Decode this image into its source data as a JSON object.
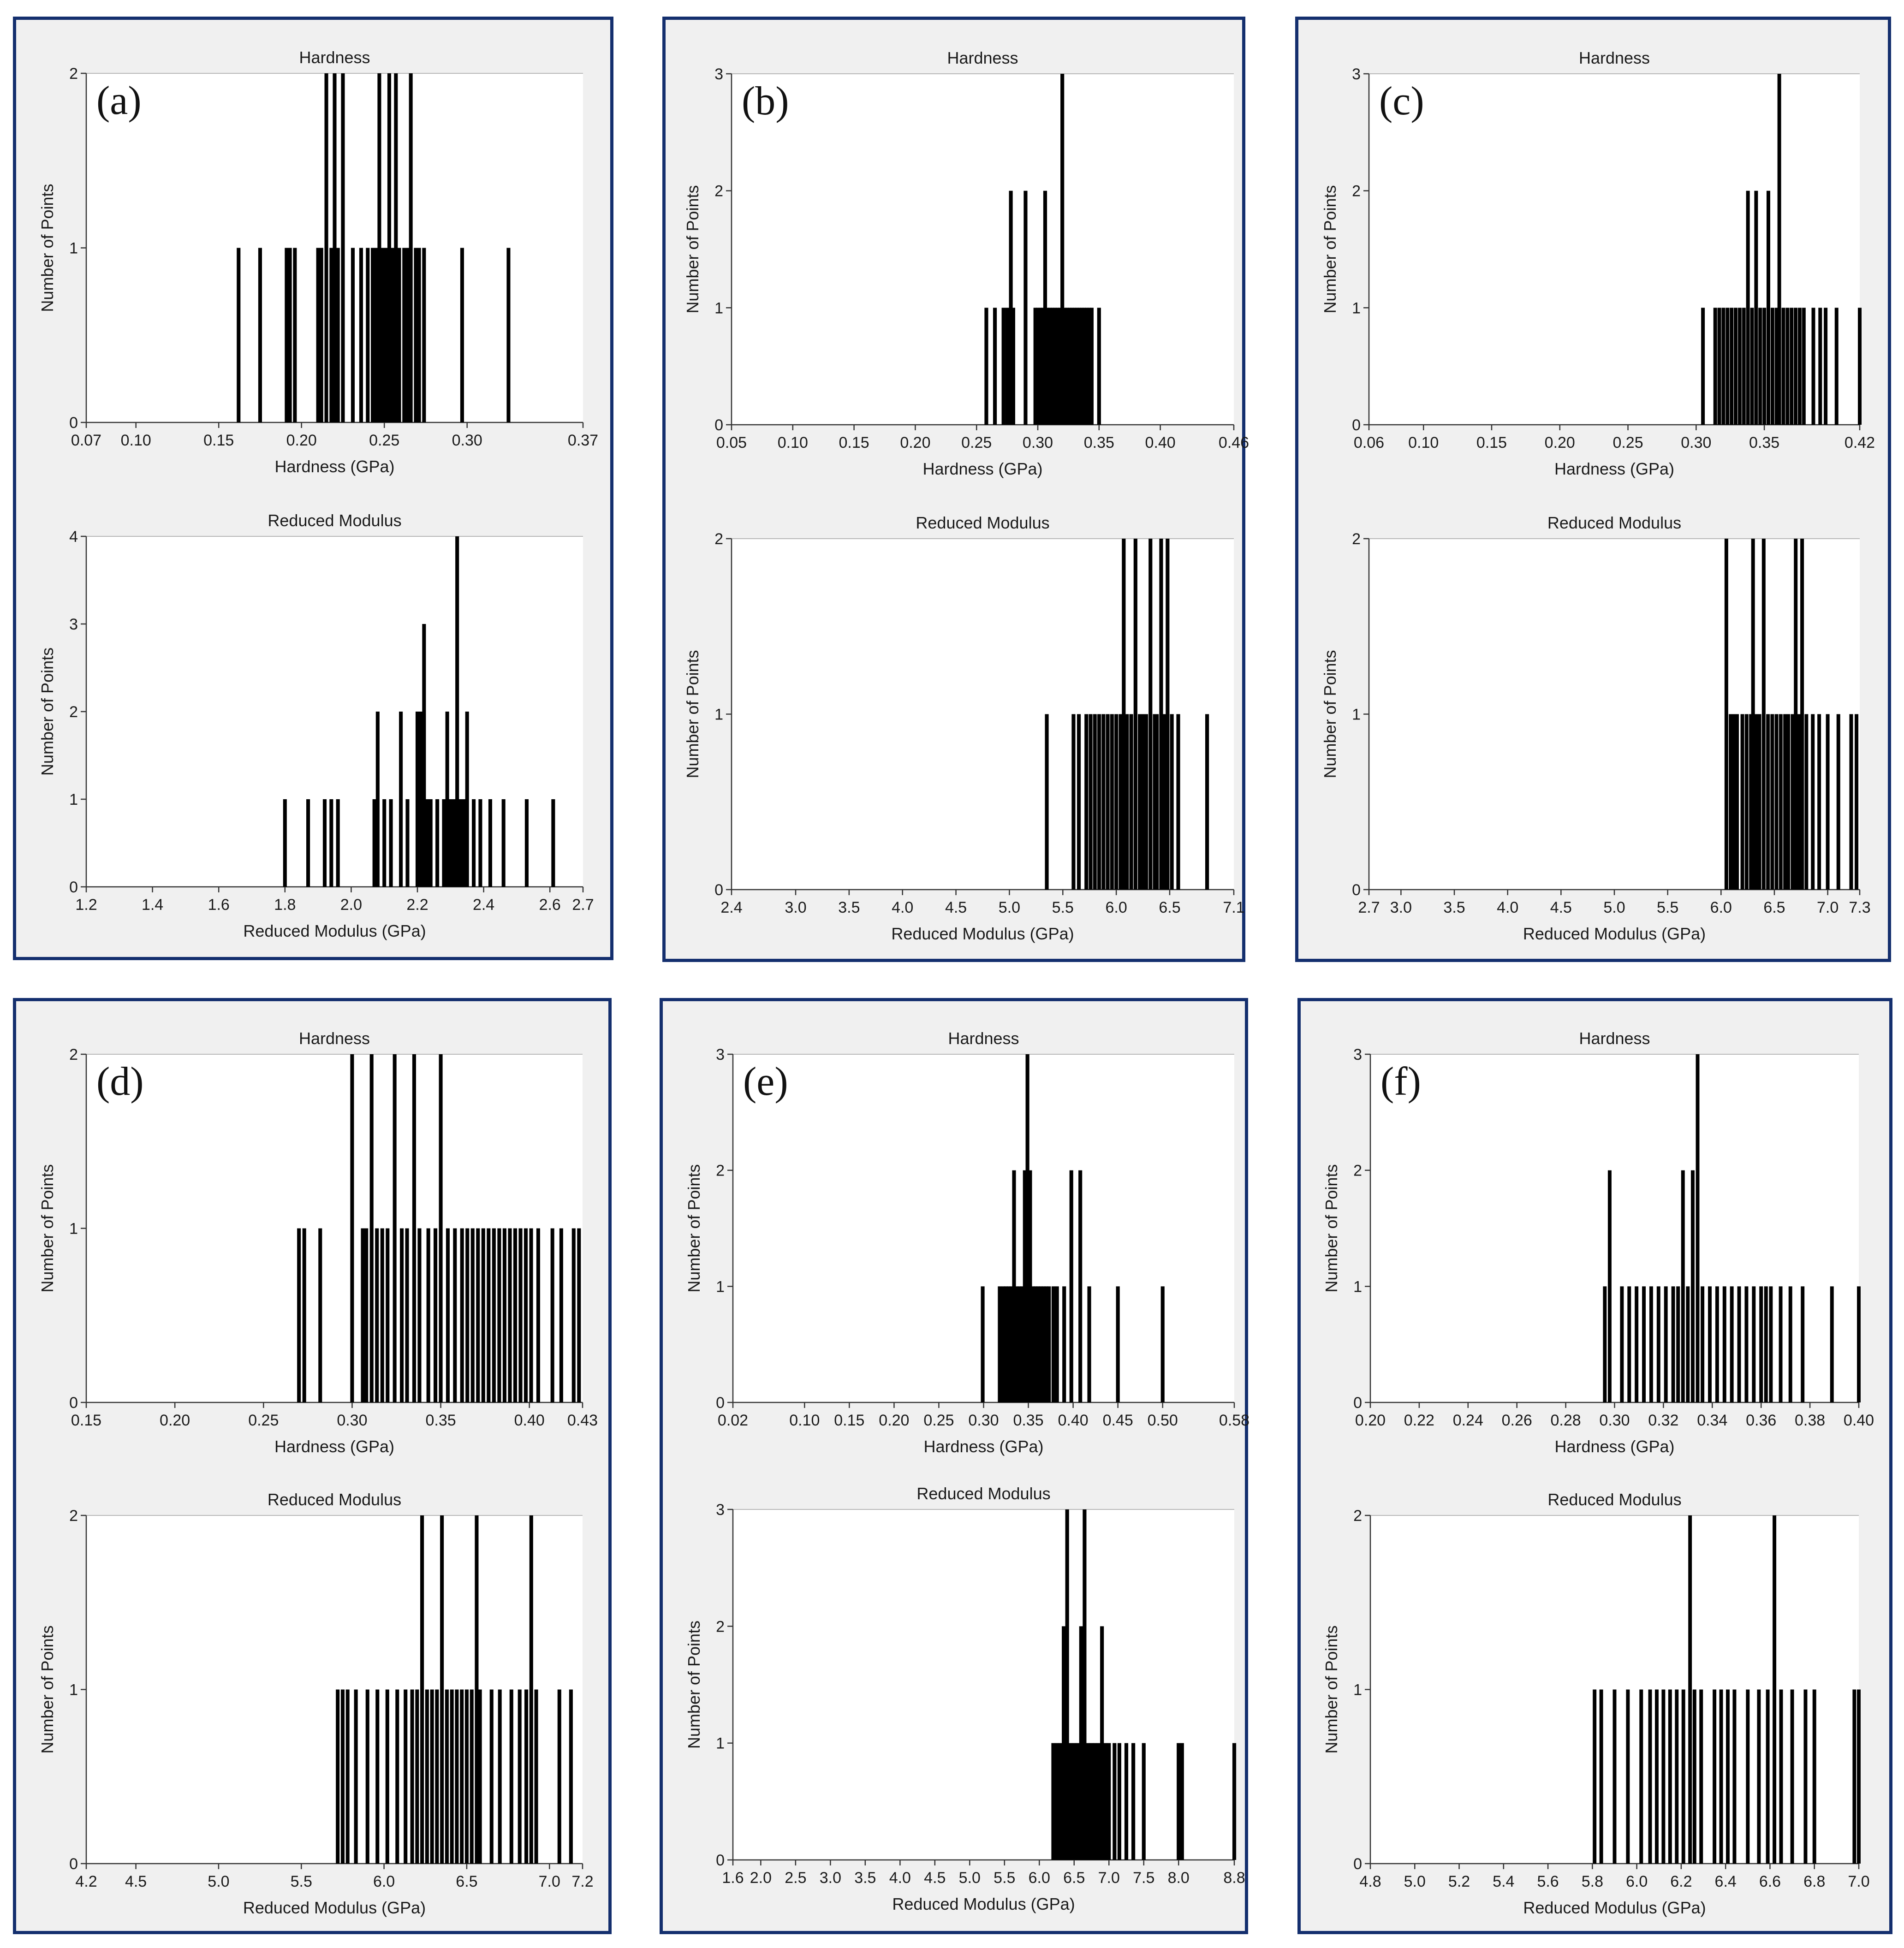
{
  "figure": {
    "panels": [
      {
        "id": "a",
        "label": "(a)",
        "hardness_title": "Hardness",
        "modulus_title": "Reduced Modulus"
      },
      {
        "id": "b",
        "label": "(b)",
        "hardness_title": "Hardness",
        "modulus_title": "Reduced Modulus"
      },
      {
        "id": "c",
        "label": "(c)",
        "hardness_title": "Hardness",
        "modulus_title": "Reduced Modulus"
      },
      {
        "id": "d",
        "label": "(d)",
        "hardness_title": "Hardness",
        "modulus_title": "Reduced Modulus"
      },
      {
        "id": "e",
        "label": "(e)",
        "hardness_title": "Hardness",
        "modulus_title": "Reduced Modulus"
      },
      {
        "id": "f",
        "label": "(f)",
        "hardness_title": "Hardness",
        "modulus_title": "Reduced Modulus"
      }
    ]
  },
  "chart_data": [
    {
      "panel": "a",
      "type": "bar",
      "title": "Hardness",
      "xlabel": "Hardness (GPa)",
      "ylabel": "Number of Points",
      "xlim": [
        0.07,
        0.37
      ],
      "xticks": [
        0.07,
        0.1,
        0.15,
        0.2,
        0.25,
        0.3,
        0.37
      ],
      "xtick_labels": [
        "0.07",
        "0.10",
        "0.15",
        "0.20",
        "0.25",
        "0.30",
        "0.37"
      ],
      "ylim": [
        0,
        2
      ],
      "yticks": [
        0,
        1,
        2
      ],
      "x": [
        0.162,
        0.175,
        0.191,
        0.193,
        0.196,
        0.21,
        0.212,
        0.215,
        0.218,
        0.22,
        0.222,
        0.225,
        0.231,
        0.236,
        0.24,
        0.243,
        0.245,
        0.247,
        0.249,
        0.251,
        0.253,
        0.255,
        0.257,
        0.259,
        0.262,
        0.264,
        0.266,
        0.269,
        0.271,
        0.274,
        0.297,
        0.325
      ],
      "values": [
        1,
        1,
        1,
        1,
        1,
        1,
        1,
        2,
        1,
        2,
        1,
        2,
        1,
        1,
        1,
        1,
        1,
        2,
        1,
        1,
        2,
        1,
        2,
        1,
        1,
        1,
        2,
        1,
        1,
        1,
        1,
        1
      ]
    },
    {
      "panel": "a",
      "type": "bar",
      "title": "Reduced Modulus",
      "xlabel": "Reduced Modulus (GPa)",
      "ylabel": "Number of Points",
      "xlim": [
        1.2,
        2.7
      ],
      "xticks": [
        1.2,
        1.4,
        1.6,
        1.8,
        2.0,
        2.2,
        2.4,
        2.6,
        2.7
      ],
      "xtick_labels": [
        "1.2",
        "1.4",
        "1.6",
        "1.8",
        "2.0",
        "2.2",
        "2.4",
        "2.6",
        "2.7"
      ],
      "ylim": [
        0,
        4
      ],
      "yticks": [
        0,
        1,
        2,
        3,
        4
      ],
      "x": [
        1.8,
        1.87,
        1.92,
        1.94,
        1.96,
        2.07,
        2.08,
        2.1,
        2.12,
        2.15,
        2.17,
        2.2,
        2.21,
        2.22,
        2.23,
        2.24,
        2.26,
        2.28,
        2.29,
        2.3,
        2.31,
        2.32,
        2.33,
        2.34,
        2.35,
        2.37,
        2.39,
        2.42,
        2.46,
        2.53,
        2.61
      ],
      "values": [
        1,
        1,
        1,
        1,
        1,
        1,
        2,
        1,
        1,
        2,
        1,
        2,
        2,
        3,
        1,
        1,
        1,
        1,
        2,
        1,
        1,
        4,
        1,
        1,
        2,
        1,
        1,
        1,
        1,
        1,
        1
      ]
    },
    {
      "panel": "b",
      "type": "bar",
      "title": "Hardness",
      "xlabel": "Hardness (GPa)",
      "ylabel": "Number of Points",
      "xlim": [
        0.05,
        0.46
      ],
      "xticks": [
        0.05,
        0.1,
        0.15,
        0.2,
        0.25,
        0.3,
        0.35,
        0.4,
        0.46
      ],
      "xtick_labels": [
        "0.05",
        "0.10",
        "0.15",
        "0.20",
        "0.25",
        "0.30",
        "0.35",
        "0.40",
        "0.46"
      ],
      "ylim": [
        0,
        3
      ],
      "yticks": [
        0,
        1,
        2,
        3
      ],
      "x": [
        0.258,
        0.265,
        0.272,
        0.275,
        0.278,
        0.28,
        0.29,
        0.298,
        0.3,
        0.302,
        0.304,
        0.306,
        0.308,
        0.31,
        0.312,
        0.314,
        0.316,
        0.318,
        0.32,
        0.322,
        0.324,
        0.326,
        0.328,
        0.33,
        0.332,
        0.334,
        0.336,
        0.338,
        0.34,
        0.342,
        0.344,
        0.35
      ],
      "values": [
        1,
        1,
        1,
        1,
        2,
        1,
        2,
        1,
        1,
        1,
        1,
        2,
        1,
        1,
        1,
        1,
        1,
        1,
        3,
        1,
        1,
        1,
        1,
        1,
        1,
        1,
        1,
        1,
        1,
        1,
        1,
        1
      ]
    },
    {
      "panel": "b",
      "type": "bar",
      "title": "Reduced Modulus",
      "xlabel": "Reduced Modulus (GPa)",
      "ylabel": "Number of Points",
      "xlim": [
        2.4,
        7.1
      ],
      "xticks": [
        2.4,
        3.0,
        3.5,
        4.0,
        4.5,
        5.0,
        5.5,
        6.0,
        6.5,
        7.1
      ],
      "xtick_labels": [
        "2.4",
        "3.0",
        "3.5",
        "4.0",
        "4.5",
        "5.0",
        "5.5",
        "6.0",
        "6.5",
        "7.1"
      ],
      "ylim": [
        0,
        2
      ],
      "yticks": [
        0,
        1,
        2
      ],
      "x": [
        5.35,
        5.6,
        5.65,
        5.72,
        5.76,
        5.8,
        5.84,
        5.88,
        5.92,
        5.96,
        6.0,
        6.04,
        6.07,
        6.1,
        6.14,
        6.18,
        6.22,
        6.25,
        6.28,
        6.32,
        6.36,
        6.38,
        6.42,
        6.45,
        6.48,
        6.52,
        6.58,
        6.85
      ],
      "values": [
        1,
        1,
        1,
        1,
        1,
        1,
        1,
        1,
        1,
        1,
        1,
        1,
        2,
        1,
        1,
        2,
        1,
        1,
        1,
        2,
        1,
        1,
        2,
        1,
        2,
        1,
        1,
        1
      ]
    },
    {
      "panel": "c",
      "type": "bar",
      "title": "Hardness",
      "xlabel": "Hardness (GPa)",
      "ylabel": "Number of Points",
      "xlim": [
        0.06,
        0.42
      ],
      "xticks": [
        0.06,
        0.1,
        0.15,
        0.2,
        0.25,
        0.3,
        0.35,
        0.42
      ],
      "xtick_labels": [
        "0.06",
        "0.10",
        "0.15",
        "0.20",
        "0.25",
        "0.30",
        "0.35",
        "0.42"
      ],
      "ylim": [
        0,
        3
      ],
      "yticks": [
        0,
        1,
        2,
        3
      ],
      "x": [
        0.305,
        0.314,
        0.317,
        0.32,
        0.323,
        0.326,
        0.329,
        0.332,
        0.335,
        0.338,
        0.341,
        0.344,
        0.347,
        0.35,
        0.353,
        0.356,
        0.359,
        0.361,
        0.364,
        0.367,
        0.37,
        0.373,
        0.376,
        0.379,
        0.386,
        0.391,
        0.395,
        0.403,
        0.42
      ],
      "values": [
        1,
        1,
        1,
        1,
        1,
        1,
        1,
        1,
        1,
        2,
        1,
        2,
        1,
        1,
        2,
        1,
        1,
        3,
        1,
        1,
        1,
        1,
        1,
        1,
        1,
        1,
        1,
        1,
        1
      ]
    },
    {
      "panel": "c",
      "type": "bar",
      "title": "Reduced Modulus",
      "xlabel": "Reduced Modulus (GPa)",
      "ylabel": "Number of Points",
      "xlim": [
        2.7,
        7.3
      ],
      "xticks": [
        2.7,
        3.0,
        3.5,
        4.0,
        4.5,
        5.0,
        5.5,
        6.0,
        6.5,
        7.0,
        7.3
      ],
      "xtick_labels": [
        "2.7",
        "3.0",
        "3.5",
        "4.0",
        "4.5",
        "5.0",
        "5.5",
        "6.0",
        "6.5",
        "7.0",
        "7.3"
      ],
      "ylim": [
        0,
        2
      ],
      "yticks": [
        0,
        1,
        2
      ],
      "x": [
        6.05,
        6.09,
        6.12,
        6.15,
        6.2,
        6.24,
        6.28,
        6.3,
        6.33,
        6.36,
        6.4,
        6.44,
        6.48,
        6.52,
        6.56,
        6.6,
        6.63,
        6.67,
        6.7,
        6.73,
        6.76,
        6.8,
        6.86,
        6.92,
        7.0,
        7.1,
        7.22,
        7.27
      ],
      "values": [
        2,
        1,
        1,
        1,
        1,
        1,
        1,
        2,
        1,
        1,
        2,
        1,
        1,
        1,
        1,
        1,
        1,
        1,
        2,
        1,
        2,
        1,
        1,
        1,
        1,
        1,
        1,
        1
      ]
    },
    {
      "panel": "d",
      "type": "bar",
      "title": "Hardness",
      "xlabel": "Hardness (GPa)",
      "ylabel": "Number of Points",
      "xlim": [
        0.15,
        0.43
      ],
      "xticks": [
        0.15,
        0.2,
        0.25,
        0.3,
        0.35,
        0.4,
        0.43
      ],
      "xtick_labels": [
        "0.15",
        "0.20",
        "0.25",
        "0.30",
        "0.35",
        "0.40",
        "0.43"
      ],
      "ylim": [
        0,
        2
      ],
      "yticks": [
        0,
        1,
        2
      ],
      "x": [
        0.27,
        0.273,
        0.282,
        0.3,
        0.306,
        0.308,
        0.311,
        0.314,
        0.317,
        0.32,
        0.324,
        0.328,
        0.331,
        0.335,
        0.338,
        0.343,
        0.347,
        0.35,
        0.354,
        0.358,
        0.362,
        0.365,
        0.368,
        0.371,
        0.374,
        0.377,
        0.38,
        0.383,
        0.386,
        0.389,
        0.392,
        0.395,
        0.398,
        0.401,
        0.405,
        0.413,
        0.418,
        0.425,
        0.428
      ],
      "values": [
        1,
        1,
        1,
        2,
        1,
        1,
        2,
        1,
        1,
        1,
        2,
        1,
        1,
        2,
        1,
        1,
        1,
        2,
        1,
        1,
        1,
        1,
        1,
        1,
        1,
        1,
        1,
        1,
        1,
        1,
        1,
        1,
        1,
        1,
        1,
        1,
        1,
        1,
        1
      ]
    },
    {
      "panel": "d",
      "type": "bar",
      "title": "Reduced Modulus",
      "xlabel": "Reduced Modulus (GPa)",
      "ylabel": "Number of Points",
      "xlim": [
        4.2,
        7.2
      ],
      "xticks": [
        4.2,
        4.5,
        5.0,
        5.5,
        6.0,
        6.5,
        7.0,
        7.2
      ],
      "xtick_labels": [
        "4.2",
        "4.5",
        "5.0",
        "5.5",
        "6.0",
        "6.5",
        "7.0",
        "7.2"
      ],
      "ylim": [
        0,
        2
      ],
      "yticks": [
        0,
        1,
        2
      ],
      "x": [
        5.72,
        5.75,
        5.78,
        5.83,
        5.9,
        5.96,
        6.02,
        6.08,
        6.13,
        6.17,
        6.2,
        6.23,
        6.26,
        6.29,
        6.32,
        6.35,
        6.38,
        6.41,
        6.44,
        6.47,
        6.5,
        6.53,
        6.56,
        6.58,
        6.65,
        6.7,
        6.77,
        6.82,
        6.86,
        6.89,
        6.92,
        7.06,
        7.13
      ],
      "values": [
        1,
        1,
        1,
        1,
        1,
        1,
        1,
        1,
        1,
        1,
        1,
        2,
        1,
        1,
        1,
        2,
        1,
        1,
        1,
        1,
        1,
        1,
        2,
        1,
        1,
        1,
        1,
        1,
        1,
        2,
        1,
        1,
        1
      ]
    },
    {
      "panel": "e",
      "type": "bar",
      "title": "Hardness",
      "xlabel": "Hardness (GPa)",
      "ylabel": "Number of Points",
      "xlim": [
        0.02,
        0.58
      ],
      "xticks": [
        0.02,
        0.1,
        0.15,
        0.2,
        0.25,
        0.3,
        0.35,
        0.4,
        0.45,
        0.5,
        0.58
      ],
      "xtick_labels": [
        "0.02",
        "0.10",
        "0.15",
        "0.20",
        "0.25",
        "0.30",
        "0.35",
        "0.40",
        "0.45",
        "0.50",
        "0.58"
      ],
      "ylim": [
        0,
        3
      ],
      "yticks": [
        0,
        1,
        2,
        3
      ],
      "x": [
        0.299,
        0.318,
        0.322,
        0.325,
        0.328,
        0.331,
        0.334,
        0.337,
        0.34,
        0.343,
        0.346,
        0.349,
        0.352,
        0.355,
        0.358,
        0.361,
        0.364,
        0.367,
        0.37,
        0.373,
        0.378,
        0.382,
        0.39,
        0.398,
        0.408,
        0.418,
        0.45,
        0.5
      ],
      "values": [
        1,
        1,
        1,
        1,
        1,
        1,
        2,
        1,
        1,
        1,
        2,
        3,
        2,
        1,
        1,
        1,
        1,
        1,
        1,
        1,
        1,
        1,
        1,
        2,
        2,
        1,
        1,
        1
      ]
    },
    {
      "panel": "e",
      "type": "bar",
      "title": "Reduced Modulus",
      "xlabel": "Reduced Modulus (GPa)",
      "ylabel": "Number of Points",
      "xlim": [
        1.6,
        8.8
      ],
      "xticks": [
        1.6,
        2.0,
        2.5,
        3.0,
        3.5,
        4.0,
        4.5,
        5.0,
        5.5,
        6.0,
        6.5,
        7.0,
        7.5,
        8.0,
        8.8
      ],
      "xtick_labels": [
        "1.6",
        "2.0",
        "2.5",
        "3.0",
        "3.5",
        "4.0",
        "4.5",
        "5.0",
        "5.5",
        "6.0",
        "6.5",
        "7.0",
        "7.5",
        "8.0",
        "8.8"
      ],
      "ylim": [
        0,
        3
      ],
      "yticks": [
        0,
        1,
        2,
        3
      ],
      "x": [
        6.2,
        6.25,
        6.3,
        6.35,
        6.4,
        6.45,
        6.5,
        6.55,
        6.6,
        6.65,
        6.7,
        6.75,
        6.8,
        6.85,
        6.9,
        6.95,
        7.0,
        7.08,
        7.15,
        7.25,
        7.35,
        7.5,
        8.0,
        8.05,
        8.8
      ],
      "values": [
        1,
        1,
        1,
        2,
        3,
        1,
        1,
        1,
        2,
        3,
        1,
        1,
        1,
        1,
        2,
        1,
        1,
        1,
        1,
        1,
        1,
        1,
        1,
        1,
        1
      ]
    },
    {
      "panel": "f",
      "type": "bar",
      "title": "Hardness",
      "xlabel": "Hardness (GPa)",
      "ylabel": "Number of Points",
      "xlim": [
        0.2,
        0.4
      ],
      "xticks": [
        0.2,
        0.22,
        0.24,
        0.26,
        0.28,
        0.3,
        0.32,
        0.34,
        0.36,
        0.38,
        0.4
      ],
      "xtick_labels": [
        "0.20",
        "0.22",
        "0.24",
        "0.26",
        "0.28",
        "0.30",
        "0.32",
        "0.34",
        "0.36",
        "0.38",
        "0.40"
      ],
      "ylim": [
        0,
        3
      ],
      "yticks": [
        0,
        1,
        2,
        3
      ],
      "x": [
        0.296,
        0.298,
        0.303,
        0.306,
        0.309,
        0.312,
        0.315,
        0.318,
        0.321,
        0.324,
        0.326,
        0.328,
        0.33,
        0.332,
        0.334,
        0.336,
        0.339,
        0.342,
        0.345,
        0.348,
        0.351,
        0.354,
        0.357,
        0.36,
        0.362,
        0.364,
        0.368,
        0.372,
        0.377,
        0.389,
        0.4
      ],
      "values": [
        1,
        2,
        1,
        1,
        1,
        1,
        1,
        1,
        1,
        1,
        1,
        2,
        1,
        2,
        3,
        1,
        1,
        1,
        1,
        1,
        1,
        1,
        1,
        1,
        1,
        1,
        1,
        1,
        1,
        1,
        1
      ]
    },
    {
      "panel": "f",
      "type": "bar",
      "title": "Reduced Modulus",
      "xlabel": "Reduced Modulus (GPa)",
      "ylabel": "Number of Points",
      "xlim": [
        4.8,
        7.0
      ],
      "xticks": [
        4.8,
        5.0,
        5.2,
        5.4,
        5.6,
        5.8,
        6.0,
        6.2,
        6.4,
        6.6,
        6.8,
        7.0
      ],
      "xtick_labels": [
        "4.8",
        "5.0",
        "5.2",
        "5.4",
        "5.6",
        "5.8",
        "6.0",
        "6.2",
        "6.4",
        "6.6",
        "6.8",
        "7.0"
      ],
      "ylim": [
        0,
        2
      ],
      "yticks": [
        0,
        1,
        2
      ],
      "x": [
        5.81,
        5.84,
        5.9,
        5.96,
        6.02,
        6.06,
        6.09,
        6.12,
        6.15,
        6.18,
        6.21,
        6.24,
        6.26,
        6.29,
        6.35,
        6.38,
        6.41,
        6.44,
        6.5,
        6.55,
        6.59,
        6.62,
        6.65,
        6.7,
        6.76,
        6.8,
        6.98,
        7.0
      ],
      "values": [
        1,
        1,
        1,
        1,
        1,
        1,
        1,
        1,
        1,
        1,
        1,
        2,
        1,
        1,
        1,
        1,
        1,
        1,
        1,
        1,
        1,
        2,
        1,
        1,
        1,
        1,
        1,
        1
      ]
    }
  ]
}
